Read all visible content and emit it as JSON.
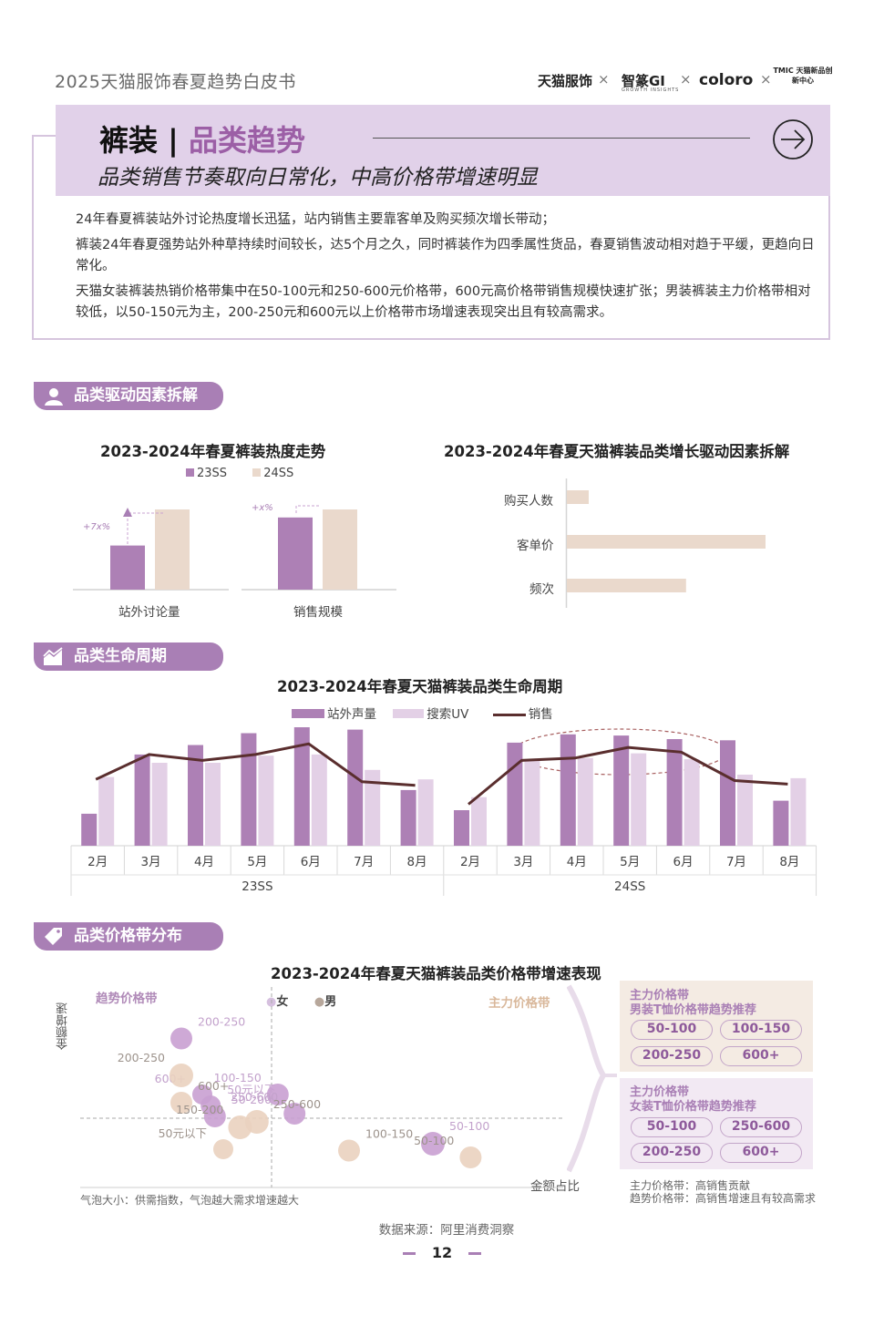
{
  "header": {
    "doc_title": "2025天猫服饰春夏趋势白皮书",
    "logos": [
      "天猫服饰",
      "智篆GI",
      "coloro",
      "TMIC 天猫新品创新中心"
    ],
    "logo_sub": "GROWTH INSIGHTS",
    "separator": "×"
  },
  "hero": {
    "title_main": "裤装 |",
    "title_accent": "品类趋势",
    "subtitle": "品类销售节奏取向日常化，中高价格带增速明显",
    "paragraphs": [
      "24年春夏裤装站外讨论热度增长迅猛，站内销售主要靠客单及购买频次增长带动；",
      "裤装24年春夏强势站外种草持续时间较长，达5个月之久，同时裤装作为四季属性货品，春夏销售波动相对趋于平缓，更趋向日常化。",
      "天猫女装裤装热销价格带集中在50-100元和250-600元价格带，600元高价格带销售规模快速扩张；男装裤装主力价格带相对较低，以50-150元为主，200-250元和600元以上价格带市场增速表现突出且有较高需求。"
    ]
  },
  "sections": {
    "drivers": "品类驱动因素拆解",
    "lifecycle": "品类生命周期",
    "price": "品类价格带分布"
  },
  "colors": {
    "purple": "#ad80b5",
    "light_purple": "#e3d0e6",
    "beige": "#ead9cc",
    "line": "#5a2e2e",
    "accent": "#9c5fa6"
  },
  "chart_heat": {
    "type": "bar",
    "title": "2023-2024年春夏裤装热度走势",
    "legend": [
      "23SS",
      "24SS"
    ],
    "categories": [
      "站外讨论量",
      "销售规模"
    ],
    "series": [
      {
        "name": "23SS",
        "values": [
          0.55,
          0.9
        ]
      },
      {
        "name": "24SS",
        "values": [
          1.0,
          1.0
        ]
      }
    ],
    "annotations": [
      "+7x%",
      "+x%"
    ]
  },
  "chart_drivers": {
    "type": "bar",
    "title": "2023-2024年春夏天猫裤装品类增长驱动因素拆解",
    "categories": [
      "购买人数",
      "客单价",
      "频次"
    ],
    "values": [
      0.11,
      1.0,
      0.6
    ]
  },
  "chart_data": {
    "type": "bar",
    "title": "2023-2024年春夏天猫裤装品类生命周期",
    "legend": [
      "站外声量",
      "搜索UV",
      "销售"
    ],
    "groups": [
      "23SS",
      "24SS"
    ],
    "categories": [
      "2月",
      "3月",
      "4月",
      "5月",
      "6月",
      "7月",
      "8月"
    ],
    "series": [
      {
        "name": "站外声量",
        "type": "bar",
        "values": [
          [
            0.27,
            0.77,
            0.85,
            0.95,
            1.0,
            0.98,
            0.47
          ],
          [
            0.3,
            0.87,
            0.94,
            0.93,
            0.9,
            0.89,
            0.38
          ]
        ]
      },
      {
        "name": "搜索UV",
        "type": "bar",
        "values": [
          [
            0.58,
            0.7,
            0.7,
            0.76,
            0.77,
            0.64,
            0.56
          ],
          [
            0.41,
            0.73,
            0.74,
            0.78,
            0.73,
            0.6,
            0.57
          ]
        ]
      },
      {
        "name": "销售",
        "type": "line",
        "values": [
          [
            0.56,
            0.77,
            0.72,
            0.77,
            0.86,
            0.54,
            0.51
          ],
          [
            0.35,
            0.72,
            0.74,
            0.83,
            0.79,
            0.55,
            0.52
          ]
        ]
      }
    ]
  },
  "chart_price": {
    "type": "scatter",
    "title": "2023-2024年春夏天猫裤装品类价格带增速表现",
    "legend": [
      "女",
      "男"
    ],
    "quadrant_left": "趋势价格带",
    "quadrant_right": "主力价格带",
    "ylabel": "金额增速",
    "xlabel": "金额占比",
    "note": "气泡大小：供需指数，气泡越大需求增速越大",
    "points": [
      {
        "label": "200-250",
        "g": "女",
        "x": 0.15,
        "y": 0.87,
        "r": 12
      },
      {
        "label": "600+",
        "g": "女",
        "x": 0.2,
        "y": 0.46,
        "r": 11
      },
      {
        "label": "50元以下",
        "g": "女",
        "x": 0.22,
        "y": 0.38,
        "r": 11
      },
      {
        "label": "100-150",
        "g": "女",
        "x": 0.38,
        "y": 0.46,
        "r": 12
      },
      {
        "label": "50-200",
        "g": "女",
        "x": 0.23,
        "y": 0.3,
        "r": 12
      },
      {
        "label": "250-600",
        "g": "女",
        "x": 0.42,
        "y": 0.32,
        "r": 12
      },
      {
        "label": "50-100",
        "g": "女",
        "x": 0.75,
        "y": 0.1,
        "r": 13
      },
      {
        "label": "200-250",
        "g": "男",
        "x": 0.15,
        "y": 0.6,
        "r": 13
      },
      {
        "label": "600+",
        "g": "男",
        "x": 0.15,
        "y": 0.4,
        "r": 12
      },
      {
        "label": "50元以下",
        "g": "男",
        "x": 0.25,
        "y": 0.06,
        "r": 11
      },
      {
        "label": "250-600",
        "g": "男",
        "x": 0.33,
        "y": 0.26,
        "r": 13
      },
      {
        "label": "150-200",
        "g": "男",
        "x": 0.29,
        "y": 0.22,
        "r": 13
      },
      {
        "label": "100-150",
        "g": "男",
        "x": 0.55,
        "y": 0.05,
        "r": 12
      },
      {
        "label": "50-100",
        "g": "男",
        "x": 0.84,
        "y": 0.0,
        "r": 12
      }
    ],
    "men_rec": {
      "title_1": "主力价格带",
      "title_2": "男装T恤价格带趋势推荐",
      "pills": [
        "50-100",
        "100-150",
        "200-250",
        "600+"
      ]
    },
    "women_rec": {
      "title_1": "主力价格带",
      "title_2": "女装T恤价格带趋势推荐",
      "pills": [
        "50-100",
        "250-600",
        "200-250",
        "600+"
      ]
    },
    "legend_notes": [
      "主力价格带：高销售贡献",
      "趋势价格带：高销售增速且有较高需求"
    ]
  },
  "footer": {
    "source": "数据来源：阿里消费洞察",
    "page": "12"
  }
}
